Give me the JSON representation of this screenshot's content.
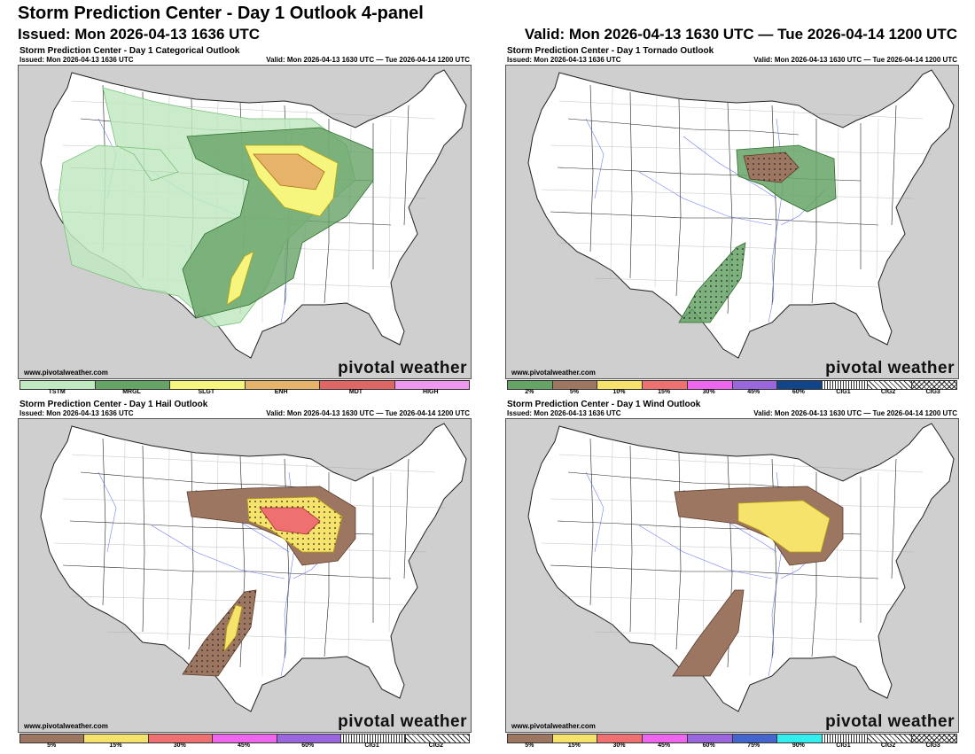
{
  "header": {
    "title": "Storm Prediction Center - Day 1 Outlook 4-panel",
    "issued": "Issued: Mon 2026-04-13 1636 UTC",
    "valid": "Valid: Mon 2026-04-13 1630 UTC — Tue 2026-04-14 1200 UTC"
  },
  "common": {
    "issued": "Issued: Mon 2026-04-13 1636 UTC",
    "valid": "Valid: Mon 2026-04-13 1630 UTC — Tue 2026-04-14 1200 UTC",
    "credit": "www.pivotalweather.com",
    "brand": "pivotal weather"
  },
  "panels": {
    "categorical": {
      "title": "Storm Prediction Center - Day 1 Categorical Outlook",
      "legend": [
        {
          "label": "TSTM",
          "color": "#c1e9c1"
        },
        {
          "label": "MRGL",
          "color": "#66a366"
        },
        {
          "label": "SLGT",
          "color": "#f6f67f"
        },
        {
          "label": "ENH",
          "color": "#e6b36b"
        },
        {
          "label": "MDT",
          "color": "#e06666"
        },
        {
          "label": "HIGH",
          "color": "#ee99ee"
        }
      ]
    },
    "tornado": {
      "title": "Storm Prediction Center - Day 1 Tornado Outlook",
      "legend": [
        {
          "label": "2%",
          "color": "#66a366"
        },
        {
          "label": "5%",
          "color": "#9d7661"
        },
        {
          "label": "10%",
          "color": "#f6e36b"
        },
        {
          "label": "15%",
          "color": "#ef7070"
        },
        {
          "label": "30%",
          "color": "#ee66ee"
        },
        {
          "label": "45%",
          "color": "#9966dd"
        },
        {
          "label": "60%",
          "color": "#114488"
        },
        {
          "label": "CIG1",
          "color": "hatch1"
        },
        {
          "label": "CIG2",
          "color": "hatch2"
        },
        {
          "label": "CIG3",
          "color": "hatch3"
        }
      ]
    },
    "hail": {
      "title": "Storm Prediction Center - Day 1 Hail Outlook",
      "legend": [
        {
          "label": "5%",
          "color": "#9d7661"
        },
        {
          "label": "15%",
          "color": "#f6e36b"
        },
        {
          "label": "30%",
          "color": "#ef7070"
        },
        {
          "label": "45%",
          "color": "#ee66ee"
        },
        {
          "label": "60%",
          "color": "#9966dd"
        },
        {
          "label": "CIG1",
          "color": "hatch1"
        },
        {
          "label": "CIG2",
          "color": "hatch2"
        }
      ]
    },
    "wind": {
      "title": "Storm Prediction Center - Day 1 Wind Outlook",
      "legend": [
        {
          "label": "5%",
          "color": "#9d7661"
        },
        {
          "label": "15%",
          "color": "#f6e36b"
        },
        {
          "label": "30%",
          "color": "#ef7070"
        },
        {
          "label": "45%",
          "color": "#ee66ee"
        },
        {
          "label": "60%",
          "color": "#9966dd"
        },
        {
          "label": "75%",
          "color": "#4466cc"
        },
        {
          "label": "90%",
          "color": "#33eeee"
        },
        {
          "label": "CIG1",
          "color": "hatch1"
        },
        {
          "label": "CIG2",
          "color": "hatch2"
        },
        {
          "label": "CIG3",
          "color": "hatch3"
        }
      ]
    }
  }
}
